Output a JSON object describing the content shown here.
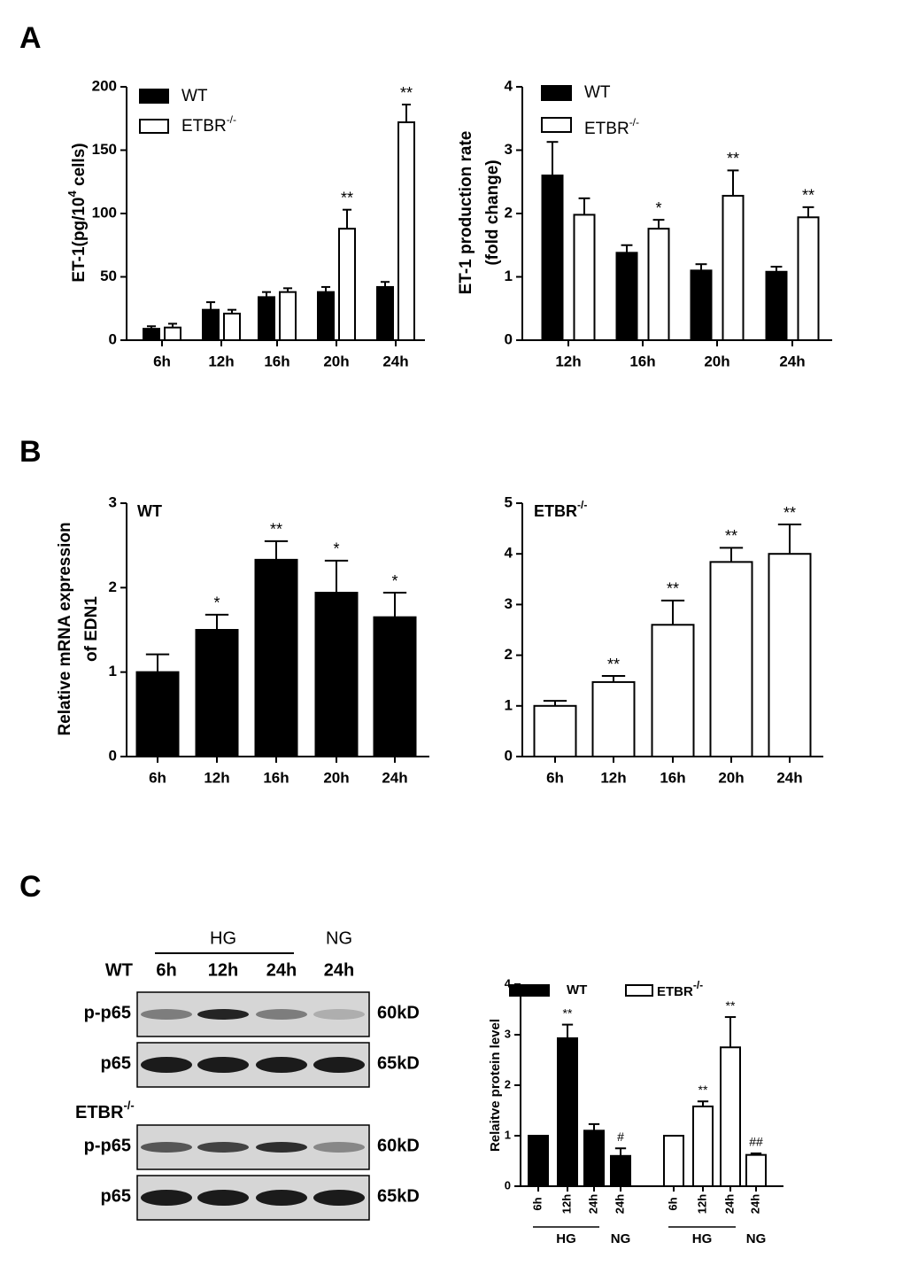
{
  "panels": [
    "A",
    "B",
    "C"
  ],
  "chart_data": [
    {
      "type": "bar",
      "ylabel": [
        "ET-1(pg/10",
        "4",
        " cells)"
      ],
      "categories": [
        "6h",
        "12h",
        "16h",
        "20h",
        "24h"
      ],
      "ylim": [
        0,
        200
      ],
      "yticks": [
        0,
        50,
        100,
        150,
        200
      ],
      "series": [
        {
          "name": "WT",
          "color": "#000000",
          "values": [
            9,
            24,
            34,
            38,
            42
          ],
          "errors": [
            2,
            6,
            4,
            4,
            4
          ]
        },
        {
          "name": "ETBR",
          "name_sup": "-/-",
          "color": "#ffffff",
          "values": [
            10,
            21,
            38,
            88,
            172
          ],
          "errors": [
            3,
            3,
            3,
            15,
            14
          ],
          "annotations": [
            null,
            null,
            null,
            "**",
            "**"
          ]
        }
      ]
    },
    {
      "type": "bar",
      "ylabel": [
        "ET-1 production rate",
        "(fold change)"
      ],
      "categories": [
        "12h",
        "16h",
        "20h",
        "24h"
      ],
      "ylim": [
        0,
        4
      ],
      "yticks": [
        0,
        1,
        2,
        3,
        4
      ],
      "series": [
        {
          "name": "WT",
          "color": "#000000",
          "values": [
            2.6,
            1.38,
            1.1,
            1.08
          ],
          "errors": [
            0.53,
            0.12,
            0.1,
            0.08
          ]
        },
        {
          "name": "ETBR",
          "name_sup": "-/-",
          "color": "#ffffff",
          "values": [
            1.98,
            1.76,
            2.28,
            1.94
          ],
          "errors": [
            0.26,
            0.14,
            0.4,
            0.16
          ],
          "annotations": [
            null,
            "*",
            "**",
            "**"
          ]
        }
      ]
    },
    {
      "type": "bar",
      "ylabel": [
        "Relative mRNA expression",
        "of EDN1"
      ],
      "label": "WT",
      "categories": [
        "6h",
        "12h",
        "16h",
        "20h",
        "24h"
      ],
      "ylim": [
        0,
        3
      ],
      "yticks": [
        0,
        1,
        2,
        3
      ],
      "series": [
        {
          "color": "#000000",
          "values": [
            1.0,
            1.5,
            2.33,
            1.94,
            1.65
          ],
          "errors": [
            0.21,
            0.18,
            0.22,
            0.38,
            0.29
          ],
          "annotations": [
            null,
            "*",
            "**",
            "*",
            "*"
          ]
        }
      ]
    },
    {
      "type": "bar",
      "label": "ETBR",
      "label_sup": "-/-",
      "categories": [
        "6h",
        "12h",
        "16h",
        "20h",
        "24h"
      ],
      "ylim": [
        0,
        5
      ],
      "yticks": [
        0,
        1,
        2,
        3,
        4,
        5
      ],
      "series": [
        {
          "color": "#ffffff",
          "values": [
            1.0,
            1.47,
            2.6,
            3.84,
            4.0
          ],
          "errors": [
            0.1,
            0.12,
            0.48,
            0.28,
            0.58
          ],
          "annotations": [
            null,
            "**",
            "**",
            "**",
            "**"
          ]
        }
      ]
    },
    {
      "type": "bar",
      "ylabel": [
        "Relaitve protein level"
      ],
      "categories": [
        "6h",
        "12h",
        "24h",
        "24h"
      ],
      "groups": [
        "HG",
        "NG"
      ],
      "ylim": [
        0,
        4
      ],
      "yticks": [
        0,
        1,
        2,
        3,
        4
      ],
      "series": [
        {
          "name": "WT",
          "color": "#000000",
          "values": [
            1.0,
            2.93,
            1.1,
            0.6
          ],
          "errors": [
            0,
            0.27,
            0.13,
            0.15
          ],
          "annotations": [
            null,
            "**",
            null,
            "#"
          ]
        },
        {
          "name": "ETBR",
          "name_sup": "-/-",
          "color": "#ffffff",
          "values": [
            1.0,
            1.58,
            2.75,
            0.62
          ],
          "errors": [
            0,
            0.1,
            0.6,
            0.03
          ],
          "annotations": [
            null,
            "**",
            "**",
            "##"
          ]
        }
      ]
    }
  ],
  "blot": {
    "hg": "HG",
    "ng": "NG",
    "wt": "WT",
    "lanes": [
      "6h",
      "12h",
      "24h",
      "24h"
    ],
    "etbr": "ETBR",
    "etbr_sup": "-/-",
    "rows": [
      {
        "label": "p-p65",
        "kd": "60kD"
      },
      {
        "label": "p65",
        "kd": "65kD"
      }
    ]
  }
}
